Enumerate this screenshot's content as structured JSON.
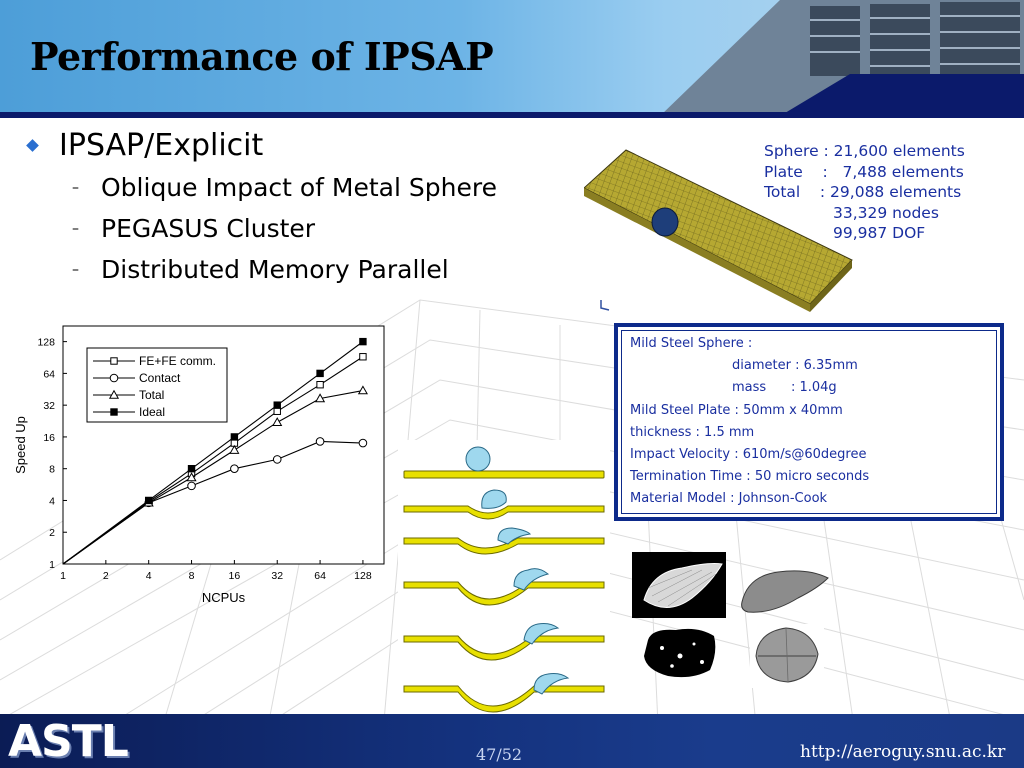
{
  "slide": {
    "title": "Performance of IPSAP",
    "bullet": "IPSAP/Explicit",
    "sub_bullets": [
      "Oblique Impact of Metal Sphere",
      "PEGASUS Cluster",
      "Distributed Memory Parallel"
    ]
  },
  "element_info": [
    "Sphere : 21,600 elements",
    "Plate    :   7,488 elements",
    "Total    : 29,088 elements",
    "              33,329 nodes",
    "              99,987 DOF"
  ],
  "spec_box": [
    "Mild Steel Sphere :",
    "diameter : 6.35mm",
    "mass      : 1.04g",
    "Mild Steel Plate : 50mm x 40mm",
    "thickness : 1.5 mm",
    "Impact Velocity : 610m/s@60degree",
    "Termination Time : 50 micro seconds",
    "Material Model : Johnson-Cook"
  ],
  "chart_data": {
    "type": "line",
    "xlabel": "NCPUs",
    "ylabel": "Speed Up",
    "x": [
      1,
      2,
      4,
      8,
      16,
      32,
      64,
      128
    ],
    "xscale": "log2",
    "yscale": "log2",
    "xlim": [
      1,
      180
    ],
    "ylim": [
      1,
      180
    ],
    "xticks": [
      "1",
      "2",
      "4",
      "8",
      "16",
      "32",
      "64",
      "128"
    ],
    "yticks": [
      "1",
      "2",
      "4",
      "8",
      "16",
      "32",
      "64",
      "128"
    ],
    "legend_position": "top-left",
    "series": [
      {
        "name": "FE+FE comm.",
        "marker": "square-open",
        "x": [
          1,
          4,
          8,
          16,
          32,
          64,
          128
        ],
        "values": [
          1,
          3.9,
          7.2,
          14,
          28,
          50,
          92
        ]
      },
      {
        "name": "Contact",
        "marker": "circle-open",
        "x": [
          1,
          4,
          8,
          16,
          32,
          64,
          128
        ],
        "values": [
          1,
          3.8,
          5.5,
          8,
          9.8,
          14.5,
          14
        ]
      },
      {
        "name": "Total",
        "marker": "triangle-open",
        "x": [
          1,
          4,
          8,
          16,
          32,
          64,
          128
        ],
        "values": [
          1,
          3.8,
          6.6,
          12,
          22,
          37,
          44
        ]
      },
      {
        "name": "Ideal",
        "marker": "square-filled",
        "x": [
          1,
          4,
          8,
          16,
          32,
          64,
          128
        ],
        "values": [
          1,
          4,
          8,
          16,
          32,
          64,
          128
        ]
      }
    ]
  },
  "footer": {
    "logo": "ASTL",
    "page": "47/52",
    "url": "http://aeroguy.snu.ac.kr"
  },
  "colors": {
    "header_blue": "#4d9ed8",
    "dark_navy": "#0b1a6b",
    "info_text": "#1a2fa0",
    "plate_yellow": "#e8e000",
    "sphere_cyan": "#9fd8ee"
  }
}
